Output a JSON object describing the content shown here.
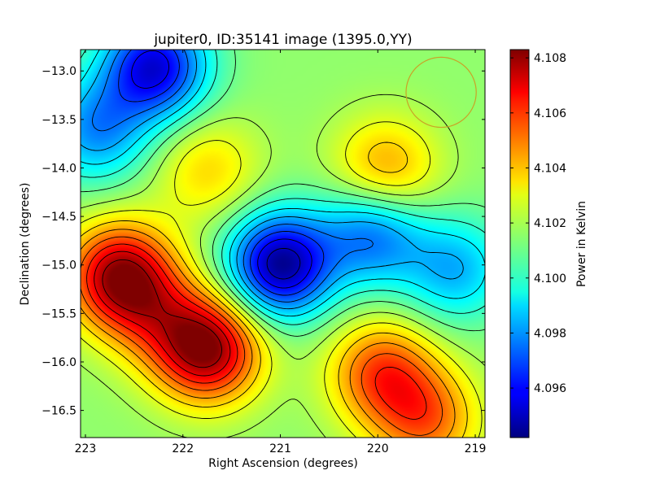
{
  "chart_data": {
    "type": "heatmap",
    "title": "jupiter0, ID:35141 image (1395.0,YY)",
    "xlabel": "Right Ascension (degrees)",
    "ylabel": "Declination (degrees)",
    "colorbar_label": "Power in Kelvin",
    "xlim": [
      223.05,
      218.9
    ],
    "ylim": [
      -16.78,
      -12.78
    ],
    "x_ticks": [
      223,
      222,
      221,
      220,
      219
    ],
    "x_tick_labels": [
      "223",
      "222",
      "221",
      "220",
      "219"
    ],
    "y_ticks": [
      -13.0,
      -13.5,
      -14.0,
      -14.5,
      -15.0,
      -15.5,
      -16.0,
      -16.5
    ],
    "y_tick_labels": [
      "−13.0",
      "−13.5",
      "−14.0",
      "−14.5",
      "−15.0",
      "−15.5",
      "−16.0",
      "−16.5"
    ],
    "colorbar_range": [
      4.0942,
      4.1083
    ],
    "colorbar_ticks": [
      4.096,
      4.098,
      4.1,
      4.102,
      4.104,
      4.106,
      4.108
    ],
    "colorbar_tick_labels": [
      "4.096",
      "4.098",
      "4.100",
      "4.102",
      "4.104",
      "4.106",
      "4.108"
    ],
    "colormap": "jet",
    "contours": true,
    "grid": false,
    "background_value": 4.1015,
    "features": [
      {
        "ra": 222.65,
        "dec": -15.12,
        "value": 4.108
      },
      {
        "ra": 221.75,
        "dec": -15.88,
        "value": 4.108
      },
      {
        "ra": 222.25,
        "dec": -15.55,
        "value": 4.104
      },
      {
        "ra": 219.92,
        "dec": -14.03,
        "value": 4.1045
      },
      {
        "ra": 219.95,
        "dec": -16.12,
        "value": 4.1055
      },
      {
        "ra": 219.5,
        "dec": -16.6,
        "value": 4.105
      },
      {
        "ra": 221.75,
        "dec": -14.02,
        "value": 4.1035
      },
      {
        "ra": 221.0,
        "dec": -15.0,
        "value": 4.0945
      },
      {
        "ra": 220.05,
        "dec": -14.68,
        "value": 4.0975
      },
      {
        "ra": 219.2,
        "dec": -15.05,
        "value": 4.0985
      },
      {
        "ra": 222.3,
        "dec": -12.95,
        "value": 4.0955
      },
      {
        "ra": 222.9,
        "dec": -13.6,
        "value": 4.098
      }
    ],
    "beam_circle": {
      "ra": 219.35,
      "dec": -13.22,
      "radius_deg": 0.36,
      "color": "#c9a227"
    },
    "axes_color": "#000000"
  }
}
